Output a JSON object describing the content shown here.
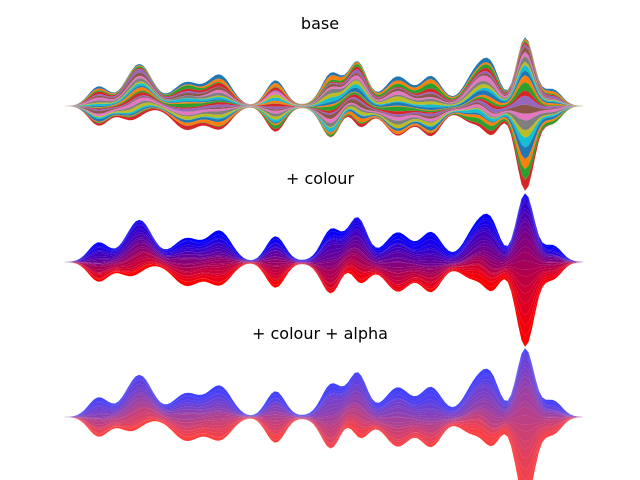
{
  "figure": {
    "background": "#ffffff"
  },
  "chart_data": [
    {
      "type": "area",
      "subtype": "stacked-streamgraph",
      "title": "base",
      "axes_visible": false,
      "color_mode": "categorical",
      "layer_count": 24,
      "x_domain": [
        0,
        100
      ],
      "colors": [
        "#1f77b4",
        "#ff7f0e",
        "#2ca02c",
        "#d62728",
        "#9467bd",
        "#8c564b",
        "#e377c2",
        "#7f7f7f",
        "#bcbd22",
        "#17becf"
      ],
      "alpha": 1.0
    },
    {
      "type": "area",
      "subtype": "stacked-streamgraph",
      "title": "+ colour",
      "axes_visible": false,
      "color_mode": "gradient",
      "layer_count": 24,
      "x_domain": [
        0,
        100
      ],
      "gradient": {
        "start": "#0000ff",
        "end": "#ff0000"
      },
      "alpha": 1.0
    },
    {
      "type": "area",
      "subtype": "stacked-streamgraph",
      "title": "+ colour + alpha",
      "axes_visible": false,
      "color_mode": "gradient",
      "layer_count": 24,
      "x_domain": [
        0,
        100
      ],
      "gradient": {
        "start": "#0000ff",
        "end": "#ff0000"
      },
      "alpha": 0.75
    }
  ]
}
